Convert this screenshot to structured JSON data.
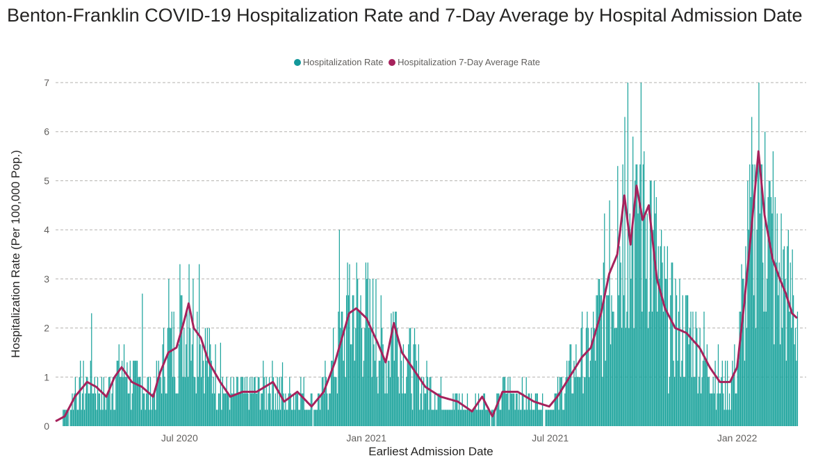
{
  "title": "Benton-Franklin COVID-19 Hospitalization Rate and 7-Day Average by Hospital Admission Date",
  "legend": [
    {
      "label": "Hospitalization Rate",
      "color": "#118DAC"
    },
    {
      "label": "Hospitalization 7-Day Average Rate",
      "color": "#A6225C"
    }
  ],
  "chart_data": {
    "type": "bar",
    "title": "Benton-Franklin COVID-19 Hospitalization Rate and 7-Day Average by Hospital Admission Date",
    "xlabel": "Earliest Admission Date",
    "ylabel": "Hospitalization Rate (Per 100,000 Pop.)",
    "ylim": [
      0,
      7
    ],
    "yticks": [
      "0",
      "1",
      "2",
      "3",
      "4",
      "5",
      "6",
      "7"
    ],
    "xticks": [
      {
        "label": "Jul 2020",
        "date": "2020-07-01"
      },
      {
        "label": "Jan 2021",
        "date": "2021-01-01"
      },
      {
        "label": "Jul 2021",
        "date": "2021-07-01"
      },
      {
        "label": "Jan 2022",
        "date": "2022-01-01"
      }
    ],
    "x_range": [
      "2020-03-01",
      "2022-03-10"
    ],
    "grid": "horizontal dashed",
    "legend_position": "top-center",
    "bar_color": "#1BA39C",
    "line_color": "#A6225C",
    "series": [
      {
        "name": "Hospitalization 7-Day Average Rate",
        "type": "line",
        "points": [
          [
            "2020-03-01",
            0.1
          ],
          [
            "2020-03-10",
            0.2
          ],
          [
            "2020-03-20",
            0.6
          ],
          [
            "2020-04-01",
            0.9
          ],
          [
            "2020-04-10",
            0.8
          ],
          [
            "2020-04-20",
            0.6
          ],
          [
            "2020-04-28",
            1.0
          ],
          [
            "2020-05-05",
            1.2
          ],
          [
            "2020-05-15",
            0.9
          ],
          [
            "2020-05-25",
            0.8
          ],
          [
            "2020-06-05",
            0.6
          ],
          [
            "2020-06-12",
            1.1
          ],
          [
            "2020-06-20",
            1.5
          ],
          [
            "2020-06-28",
            1.6
          ],
          [
            "2020-07-05",
            2.1
          ],
          [
            "2020-07-10",
            2.5
          ],
          [
            "2020-07-15",
            2.0
          ],
          [
            "2020-07-22",
            1.8
          ],
          [
            "2020-07-30",
            1.3
          ],
          [
            "2020-08-10",
            0.9
          ],
          [
            "2020-08-20",
            0.6
          ],
          [
            "2020-09-01",
            0.7
          ],
          [
            "2020-09-15",
            0.7
          ],
          [
            "2020-10-01",
            0.9
          ],
          [
            "2020-10-12",
            0.5
          ],
          [
            "2020-10-25",
            0.7
          ],
          [
            "2020-11-08",
            0.4
          ],
          [
            "2020-11-20",
            0.7
          ],
          [
            "2020-12-01",
            1.3
          ],
          [
            "2020-12-08",
            1.8
          ],
          [
            "2020-12-15",
            2.3
          ],
          [
            "2020-12-22",
            2.4
          ],
          [
            "2021-01-01",
            2.2
          ],
          [
            "2021-01-12",
            1.7
          ],
          [
            "2021-01-20",
            1.3
          ],
          [
            "2021-01-28",
            2.1
          ],
          [
            "2021-02-05",
            1.5
          ],
          [
            "2021-02-15",
            1.2
          ],
          [
            "2021-02-28",
            0.8
          ],
          [
            "2021-03-15",
            0.6
          ],
          [
            "2021-04-01",
            0.5
          ],
          [
            "2021-04-15",
            0.3
          ],
          [
            "2021-04-25",
            0.6
          ],
          [
            "2021-05-05",
            0.2
          ],
          [
            "2021-05-15",
            0.7
          ],
          [
            "2021-05-30",
            0.7
          ],
          [
            "2021-06-15",
            0.5
          ],
          [
            "2021-06-30",
            0.4
          ],
          [
            "2021-07-08",
            0.6
          ],
          [
            "2021-07-20",
            1.0
          ],
          [
            "2021-08-01",
            1.4
          ],
          [
            "2021-08-10",
            1.6
          ],
          [
            "2021-08-20",
            2.3
          ],
          [
            "2021-08-28",
            3.1
          ],
          [
            "2021-09-05",
            3.5
          ],
          [
            "2021-09-12",
            4.7
          ],
          [
            "2021-09-18",
            3.7
          ],
          [
            "2021-09-24",
            4.9
          ],
          [
            "2021-09-30",
            4.2
          ],
          [
            "2021-10-06",
            4.5
          ],
          [
            "2021-10-14",
            3.0
          ],
          [
            "2021-10-22",
            2.4
          ],
          [
            "2021-11-01",
            2.0
          ],
          [
            "2021-11-12",
            1.9
          ],
          [
            "2021-11-25",
            1.6
          ],
          [
            "2021-12-05",
            1.2
          ],
          [
            "2021-12-15",
            0.9
          ],
          [
            "2021-12-25",
            0.9
          ],
          [
            "2022-01-01",
            1.2
          ],
          [
            "2022-01-08",
            2.5
          ],
          [
            "2022-01-15",
            4.0
          ],
          [
            "2022-01-22",
            5.6
          ],
          [
            "2022-01-28",
            4.3
          ],
          [
            "2022-02-05",
            3.4
          ],
          [
            "2022-02-12",
            3.0
          ],
          [
            "2022-02-18",
            2.7
          ],
          [
            "2022-02-24",
            2.3
          ],
          [
            "2022-03-01",
            2.2
          ]
        ]
      },
      {
        "name": "Hospitalization Rate",
        "type": "bar",
        "peaks": [
          [
            "2020-03-20",
            1.0
          ],
          [
            "2020-04-05",
            2.3
          ],
          [
            "2020-05-10",
            1.3
          ],
          [
            "2020-05-25",
            2.7
          ],
          [
            "2020-06-20",
            3.0
          ],
          [
            "2020-07-01",
            3.3
          ],
          [
            "2020-07-10",
            3.3
          ],
          [
            "2020-07-20",
            3.3
          ],
          [
            "2020-08-10",
            1.7
          ],
          [
            "2020-10-10",
            1.3
          ],
          [
            "2020-12-05",
            4.0
          ],
          [
            "2020-12-15",
            3.3
          ],
          [
            "2021-01-10",
            3.0
          ],
          [
            "2021-01-25",
            2.3
          ],
          [
            "2021-08-28",
            4.6
          ],
          [
            "2021-09-05",
            5.3
          ],
          [
            "2021-09-12",
            6.3
          ],
          [
            "2021-09-15",
            7.0
          ],
          [
            "2021-09-20",
            5.9
          ],
          [
            "2021-09-28",
            7.0
          ],
          [
            "2021-10-01",
            5.6
          ],
          [
            "2021-10-10",
            4.0
          ],
          [
            "2021-11-01",
            3.0
          ],
          [
            "2022-01-05",
            3.3
          ],
          [
            "2022-01-15",
            6.3
          ],
          [
            "2022-01-22",
            7.0
          ],
          [
            "2022-01-28",
            6.0
          ],
          [
            "2022-02-05",
            5.6
          ],
          [
            "2022-02-15",
            3.6
          ],
          [
            "2022-02-24",
            3.6
          ]
        ]
      }
    ]
  }
}
